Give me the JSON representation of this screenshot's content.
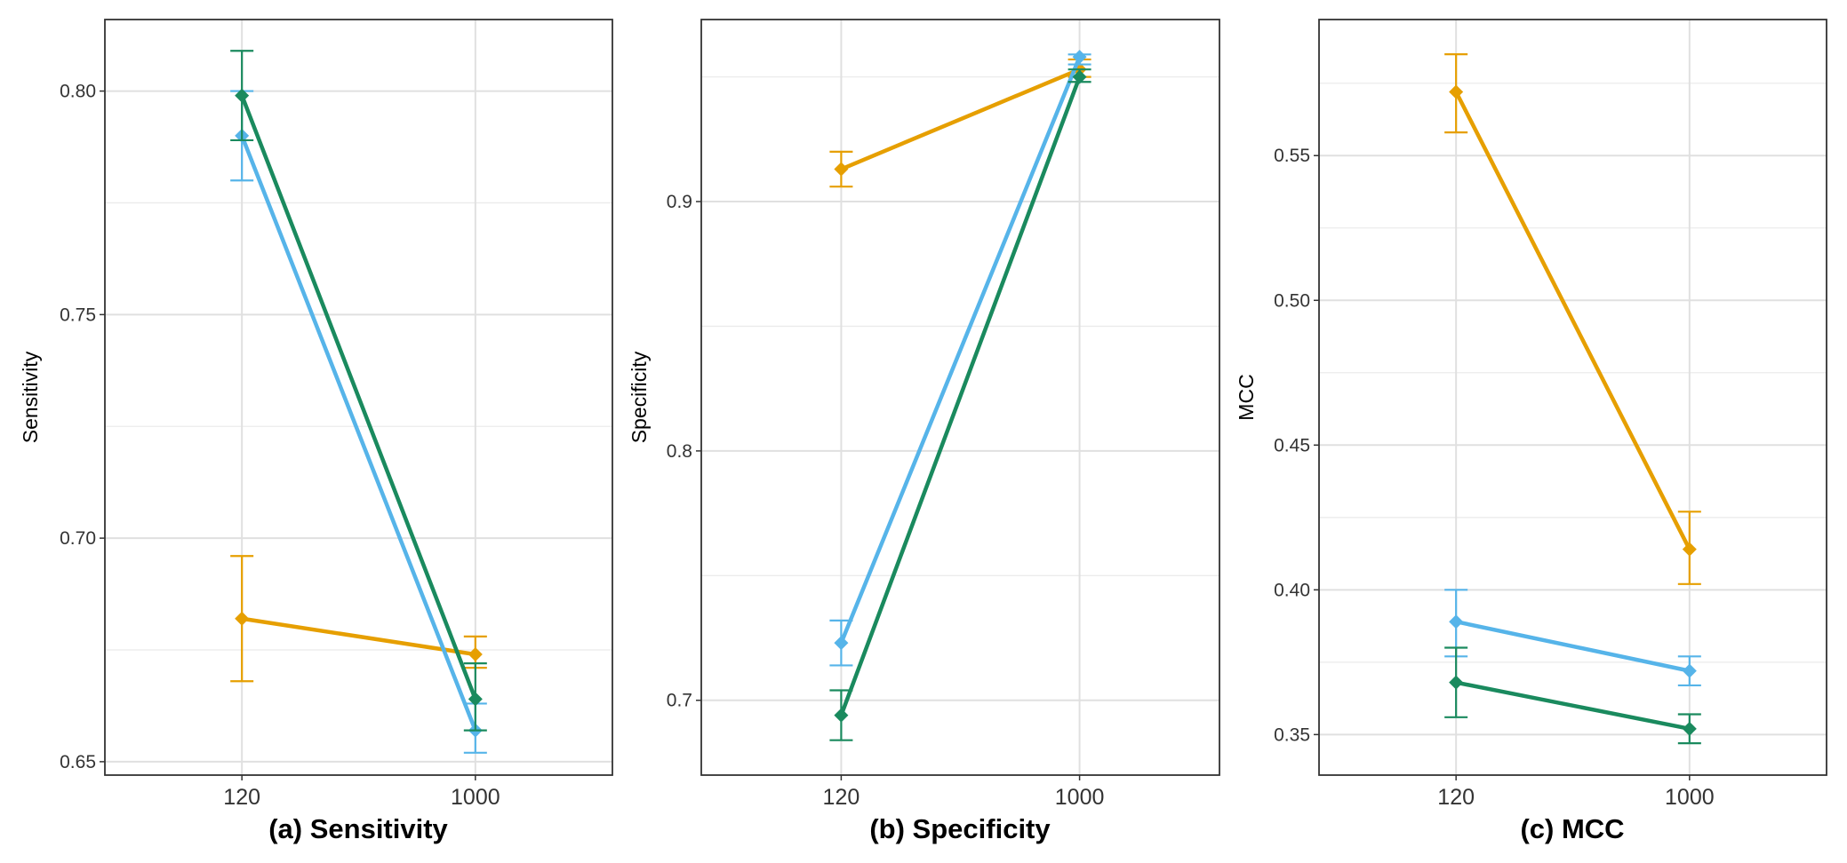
{
  "colors": {
    "orange": "#E69F00",
    "blue": "#56B4E9",
    "green": "#1A8A5E"
  },
  "chart_data": [
    {
      "type": "line",
      "caption": "(a) Sensitivity",
      "ylabel": "Sensitivity",
      "categories": [
        "120",
        "1000"
      ],
      "ylim": [
        0.647,
        0.816
      ],
      "yticks": [
        0.65,
        0.7,
        0.75,
        0.8
      ],
      "ytick_labels": [
        "0.65",
        "0.70",
        "0.75",
        "0.80"
      ],
      "grid": true,
      "series": [
        {
          "color": "#E69F00",
          "values": [
            0.682,
            0.674
          ],
          "err_low": [
            0.668,
            0.671
          ],
          "err_high": [
            0.696,
            0.678
          ]
        },
        {
          "color": "#56B4E9",
          "values": [
            0.79,
            0.657
          ],
          "err_low": [
            0.78,
            0.652
          ],
          "err_high": [
            0.8,
            0.663
          ]
        },
        {
          "color": "#1A8A5E",
          "values": [
            0.799,
            0.664
          ],
          "err_low": [
            0.789,
            0.657
          ],
          "err_high": [
            0.809,
            0.672
          ]
        }
      ]
    },
    {
      "type": "line",
      "caption": "(b) Specificity",
      "ylabel": "Specificity",
      "categories": [
        "120",
        "1000"
      ],
      "ylim": [
        0.67,
        0.973
      ],
      "yticks": [
        0.7,
        0.8,
        0.9
      ],
      "ytick_labels": [
        "0.7",
        "0.8",
        "0.9"
      ],
      "grid": true,
      "series": [
        {
          "color": "#E69F00",
          "values": [
            0.913,
            0.953
          ],
          "err_low": [
            0.906,
            0.95
          ],
          "err_high": [
            0.92,
            0.957
          ]
        },
        {
          "color": "#56B4E9",
          "values": [
            0.723,
            0.958
          ],
          "err_low": [
            0.714,
            0.955
          ],
          "err_high": [
            0.732,
            0.959
          ]
        },
        {
          "color": "#1A8A5E",
          "values": [
            0.694,
            0.95
          ],
          "err_low": [
            0.684,
            0.948
          ],
          "err_high": [
            0.704,
            0.953
          ]
        }
      ]
    },
    {
      "type": "line",
      "caption": "(c) MCC",
      "ylabel": "MCC",
      "categories": [
        "120",
        "1000"
      ],
      "ylim": [
        0.336,
        0.597
      ],
      "yticks": [
        0.35,
        0.4,
        0.45,
        0.5,
        0.55
      ],
      "ytick_labels": [
        "0.35",
        "0.40",
        "0.45",
        "0.50",
        "0.55"
      ],
      "grid": true,
      "series": [
        {
          "color": "#E69F00",
          "values": [
            0.572,
            0.414
          ],
          "err_low": [
            0.558,
            0.402
          ],
          "err_high": [
            0.585,
            0.427
          ]
        },
        {
          "color": "#56B4E9",
          "values": [
            0.389,
            0.372
          ],
          "err_low": [
            0.377,
            0.367
          ],
          "err_high": [
            0.4,
            0.377
          ]
        },
        {
          "color": "#1A8A5E",
          "values": [
            0.368,
            0.352
          ],
          "err_low": [
            0.356,
            0.347
          ],
          "err_high": [
            0.38,
            0.357
          ]
        }
      ]
    }
  ]
}
